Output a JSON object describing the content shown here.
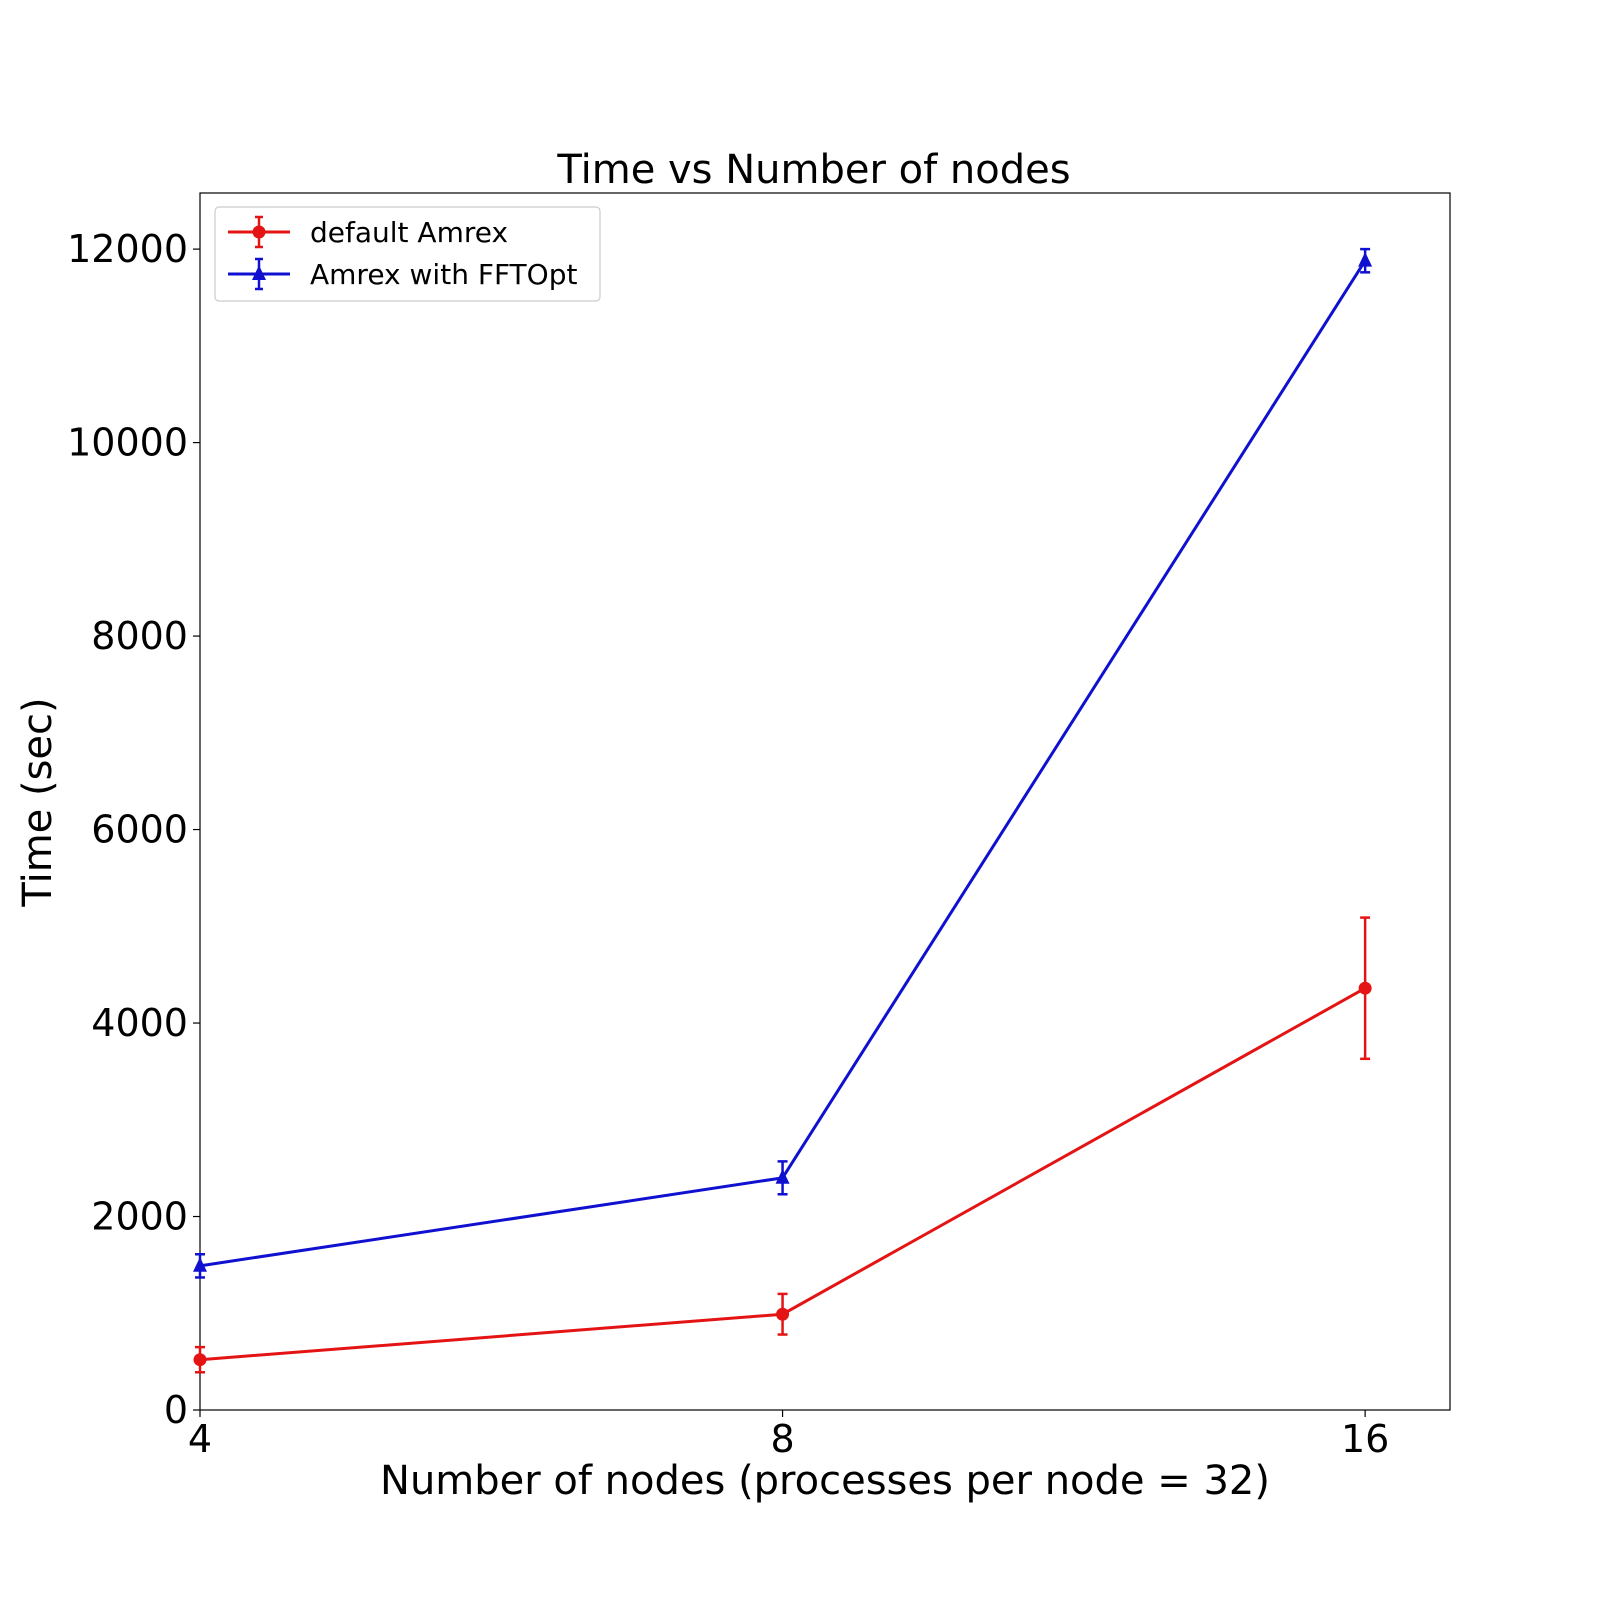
{
  "chart_data": {
    "type": "line",
    "title": "Time vs Number of nodes",
    "xlabel": "Number of nodes (processes per node = 32)",
    "ylabel": "Time (sec)",
    "x_scale": "log2",
    "x": [
      4,
      8,
      16
    ],
    "x_ticks": [
      "4",
      "8",
      "16"
    ],
    "xlim": [
      4,
      17.7
    ],
    "ylim": [
      0,
      12580
    ],
    "y_ticks": [
      0,
      2000,
      4000,
      6000,
      8000,
      10000,
      12000
    ],
    "grid": false,
    "legend_position": "top-left",
    "series": [
      {
        "name": "default Amrex",
        "color": "#e41414",
        "marker": "circle",
        "values": [
          520,
          990,
          4360
        ],
        "errors": [
          130,
          210,
          730
        ]
      },
      {
        "name": "Amrex with FFTOpt",
        "color": "#1010d0",
        "marker": "triangle",
        "values": [
          1490,
          2400,
          11880
        ],
        "errors": [
          120,
          170,
          120
        ]
      }
    ]
  }
}
